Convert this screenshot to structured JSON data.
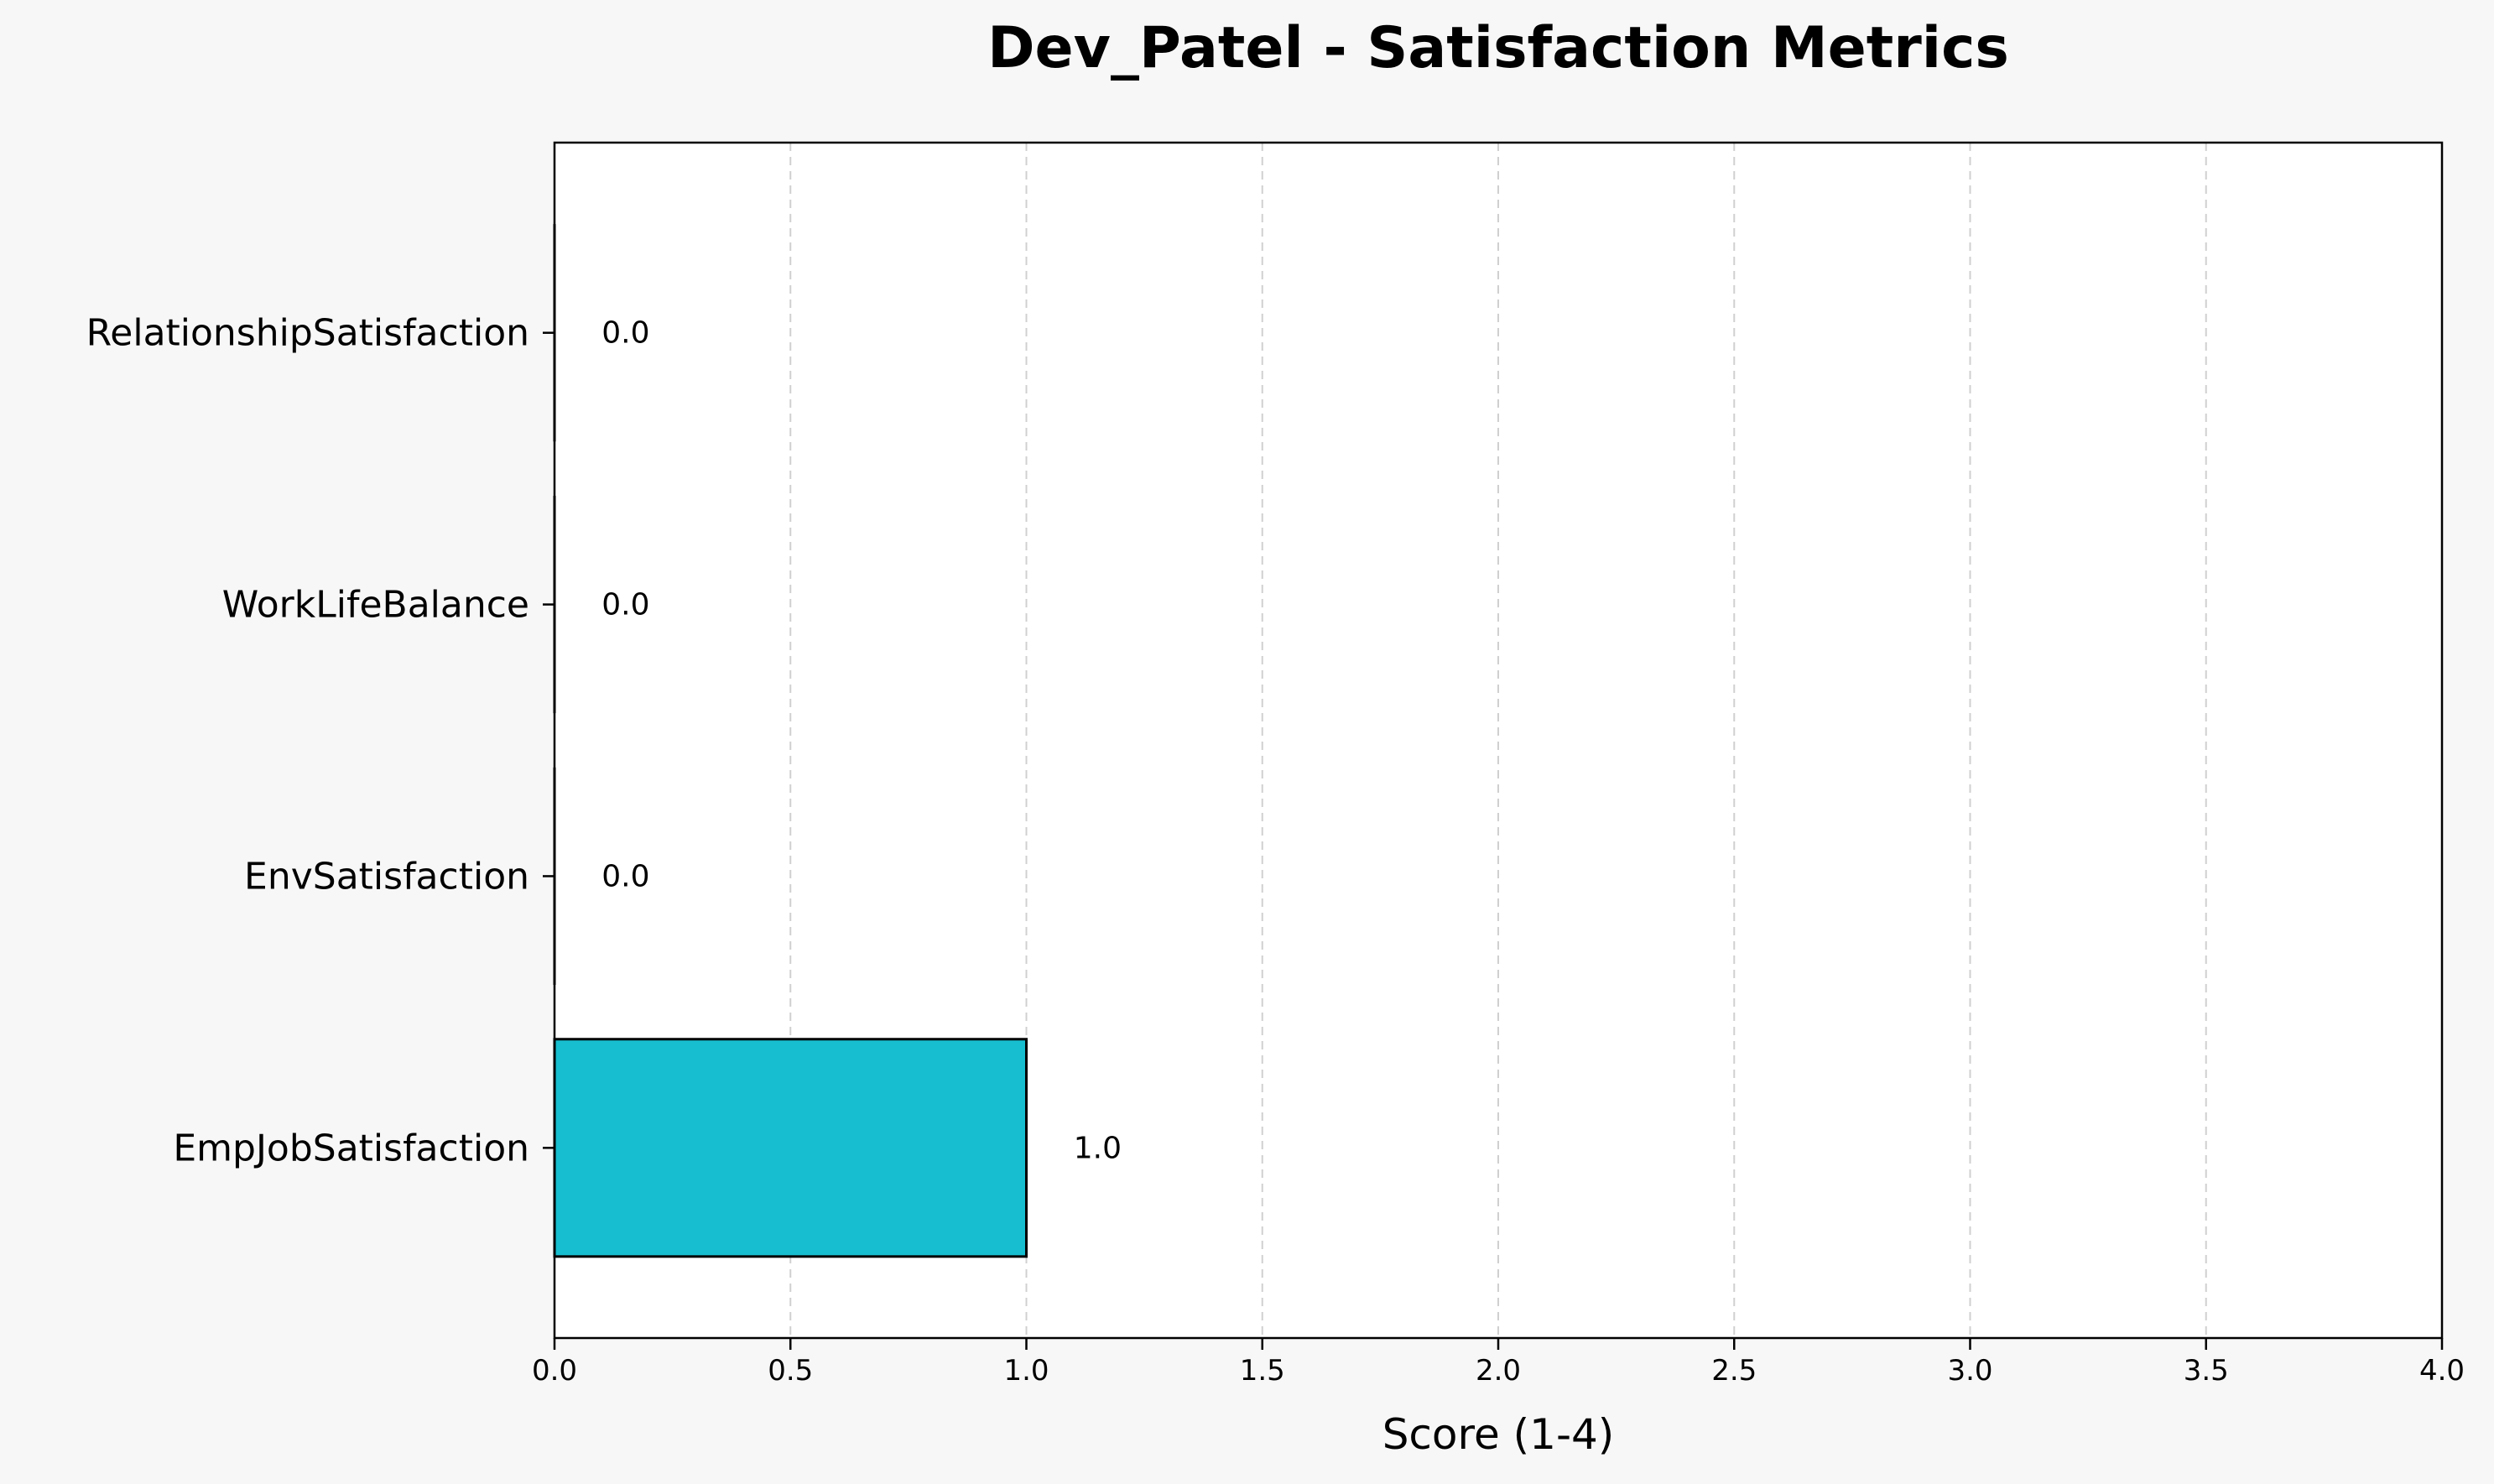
{
  "chart_data": {
    "type": "bar",
    "orientation": "horizontal",
    "title": "Dev_Patel - Satisfaction Metrics",
    "xlabel": "Score (1-4)",
    "ylabel": "",
    "xlim": [
      0,
      4
    ],
    "xticks": [
      0,
      0.5,
      1,
      1.5,
      2,
      2.5,
      3,
      3.5,
      4
    ],
    "xtick_labels": [
      "0.0",
      "0.5",
      "1.0",
      "1.5",
      "2.0",
      "2.5",
      "3.0",
      "3.5",
      "4.0"
    ],
    "categories": [
      "EmpJobSatisfaction",
      "EnvSatisfaction",
      "WorkLifeBalance",
      "RelationshipSatisfaction"
    ],
    "values": [
      1.0,
      0.0,
      0.0,
      0.0
    ],
    "value_labels": [
      "1.0",
      "0.0",
      "0.0",
      "0.0"
    ],
    "bar_color": "#17becf",
    "bar_edge_color": "#000000",
    "grid": "x-dashed",
    "background": "#f7f7f7",
    "plot_background": "#ffffff"
  }
}
